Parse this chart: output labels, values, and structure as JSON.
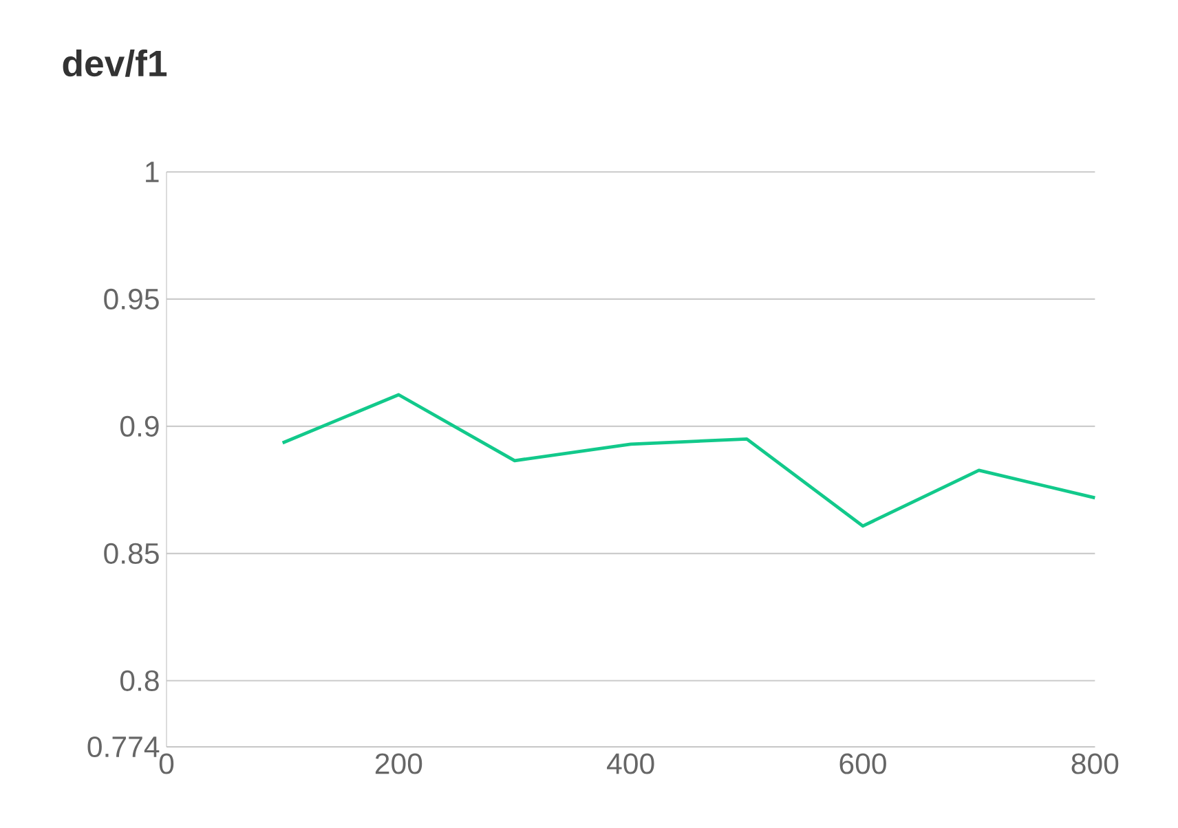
{
  "chart_data": {
    "type": "line",
    "title": "dev/f1",
    "x": [
      100,
      200,
      300,
      400,
      500,
      600,
      700,
      800
    ],
    "series": [
      {
        "color": "#12c98b",
        "values": [
          0.8935,
          0.9124,
          0.8865,
          0.893,
          0.895,
          0.8608,
          0.8827,
          0.8719
        ]
      }
    ],
    "xlim": [
      0,
      800
    ],
    "xticks": [
      0,
      200,
      400,
      600,
      800
    ],
    "ylim": [
      0.774,
      1
    ],
    "yticks": [
      0.774,
      0.8,
      0.85,
      0.9,
      0.95,
      1
    ],
    "grid": "y",
    "marker": "none",
    "line_style": "solid"
  }
}
